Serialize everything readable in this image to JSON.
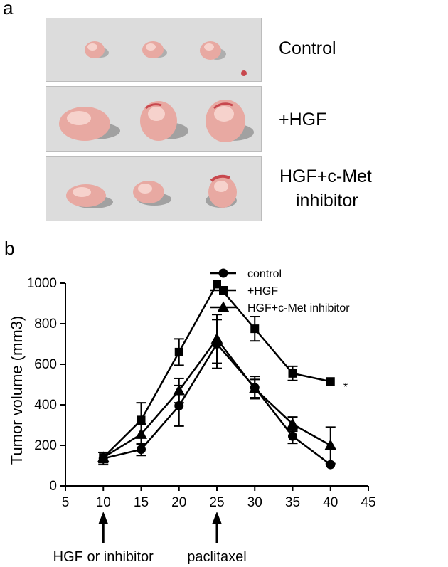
{
  "panel_a": {
    "label": "a",
    "groups": [
      "Control",
      "+HGF",
      "HGF+c-Met",
      "inhibitor"
    ]
  },
  "panel_b": {
    "label": "b"
  },
  "colors": {
    "photo_bg": "#dcdcdc",
    "tumor": "#e8a9a2",
    "tumor_highlight": "#f6d2cc",
    "tumor_dark": "#c8484e",
    "shadow": "#8e8e8e",
    "ink": "#000000"
  },
  "chart_data": {
    "type": "line",
    "xlabel": "",
    "ylabel": "Tumor volume (mm3)",
    "xlim": [
      5,
      45
    ],
    "ylim": [
      0,
      1000
    ],
    "xticks": [
      5,
      10,
      15,
      20,
      25,
      30,
      35,
      40,
      45
    ],
    "yticks": [
      0,
      200,
      400,
      600,
      800,
      1000
    ],
    "grid": false,
    "legend": "top-right",
    "x": [
      10,
      15,
      20,
      25,
      30,
      35,
      40
    ],
    "series": [
      {
        "name": "control",
        "marker": "circle",
        "values": [
          135,
          180,
          395,
          700,
          485,
          245,
          105
        ],
        "errors": [
          30,
          30,
          100,
          120,
          55,
          35,
          0
        ]
      },
      {
        "name": "+HGF",
        "marker": "square",
        "values": [
          140,
          325,
          660,
          995,
          775,
          555,
          515
        ],
        "errors": [
          25,
          85,
          65,
          0,
          60,
          35,
          0
        ]
      },
      {
        "name": "HGF+c-Met inhibitor",
        "marker": "triangle",
        "values": [
          140,
          255,
          470,
          725,
          480,
          305,
          200
        ],
        "errors": [
          25,
          50,
          60,
          120,
          45,
          35,
          90
        ]
      }
    ],
    "annotations": [
      {
        "text": "*",
        "x": 42,
        "y": 505
      },
      {
        "text": "HGF or inhibitor",
        "x": 10,
        "type": "arrow"
      },
      {
        "text": "paclitaxel",
        "x": 25,
        "type": "arrow"
      }
    ]
  }
}
